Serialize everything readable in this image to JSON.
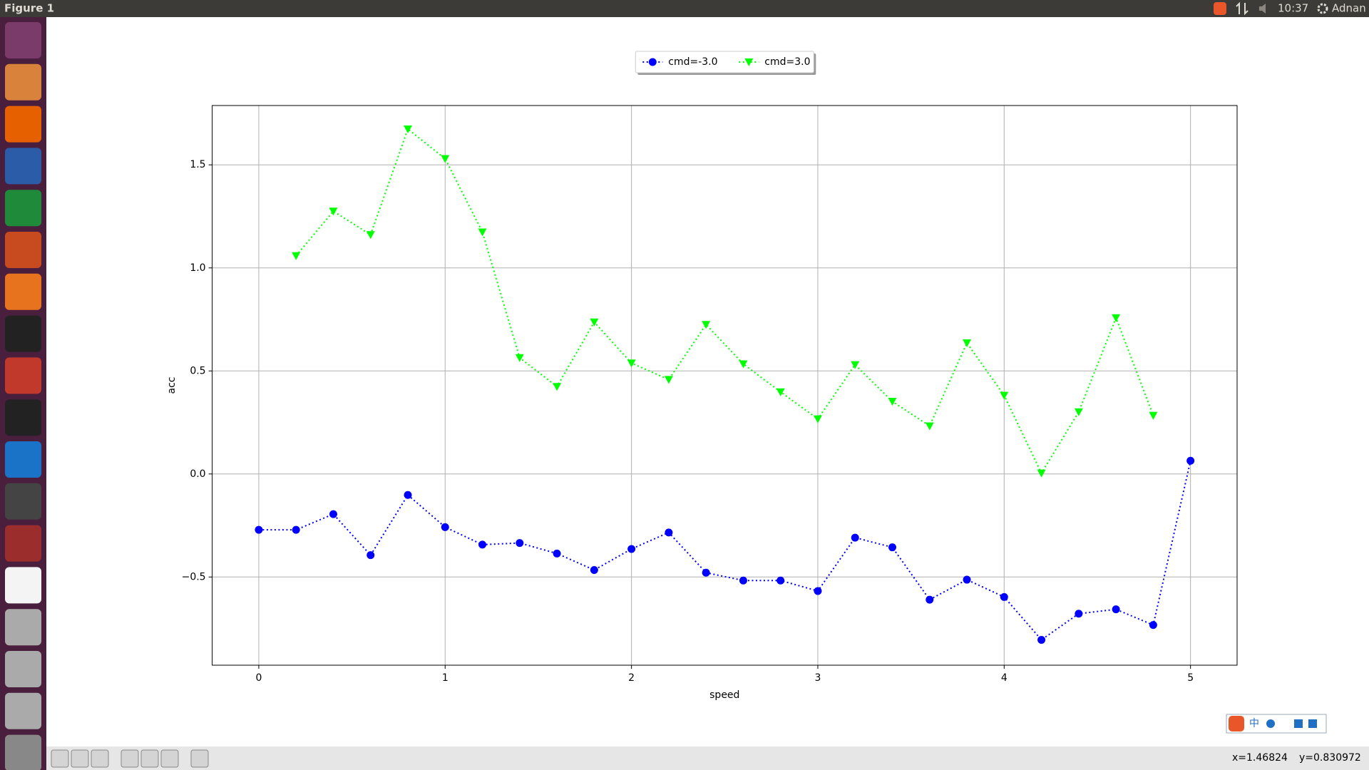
{
  "window": {
    "title": "Figure 1"
  },
  "topbar": {
    "time": "10:37",
    "user": "Adnan"
  },
  "chart_data": {
    "type": "line",
    "xlabel": "speed",
    "ylabel": "acc",
    "xlim": [
      -0.25,
      5.25
    ],
    "ylim": [
      -0.928,
      1.788
    ],
    "xticks": [
      0,
      1,
      2,
      3,
      4,
      5
    ],
    "yticks": [
      {
        "value": -0.5,
        "label": "−0.5"
      },
      {
        "value": 0,
        "label": "0.0"
      },
      0.5,
      {
        "value": 1,
        "label": "1.0"
      },
      1.5
    ],
    "grid": true,
    "legend": "upper center",
    "series": [
      {
        "name": "cmd=-3.0",
        "color": "#0000ff",
        "marker": "o",
        "x": [
          0,
          0.2,
          0.4,
          0.6,
          0.8,
          1.0,
          1.2,
          1.4,
          1.6,
          1.8,
          2.0,
          2.2,
          2.4,
          2.6,
          2.8,
          3.0,
          3.2,
          3.4,
          3.6,
          3.8,
          4.0,
          4.2,
          4.4,
          4.6,
          4.8,
          5.0
        ],
        "values": [
          -0.271,
          -0.271,
          -0.195,
          -0.394,
          -0.102,
          -0.258,
          -0.343,
          -0.335,
          -0.386,
          -0.466,
          -0.364,
          -0.284,
          -0.479,
          -0.517,
          -0.517,
          -0.568,
          -0.309,
          -0.356,
          -0.61,
          -0.513,
          -0.597,
          -0.805,
          -0.678,
          -0.657,
          -0.733,
          0.064
        ]
      },
      {
        "name": "cmd=3.0",
        "color": "#00ff00",
        "marker": "v",
        "x": [
          0.2,
          0.4,
          0.6,
          0.8,
          1.0,
          1.2,
          1.4,
          1.6,
          1.8,
          2.0,
          2.2,
          2.4,
          2.6,
          2.8,
          3.0,
          3.2,
          3.4,
          3.6,
          3.8,
          4.0,
          4.2,
          4.4,
          4.6,
          4.8
        ],
        "values": [
          1.059,
          1.275,
          1.161,
          1.674,
          1.53,
          1.174,
          0.564,
          0.424,
          0.737,
          0.538,
          0.458,
          0.725,
          0.534,
          0.398,
          0.267,
          0.53,
          0.352,
          0.233,
          0.636,
          0.381,
          0.004,
          0.301,
          0.758,
          0.284
        ]
      }
    ]
  },
  "ime": {
    "label": "中"
  },
  "status": {
    "x": "x=1.46824",
    "y": "y=0.830972"
  }
}
